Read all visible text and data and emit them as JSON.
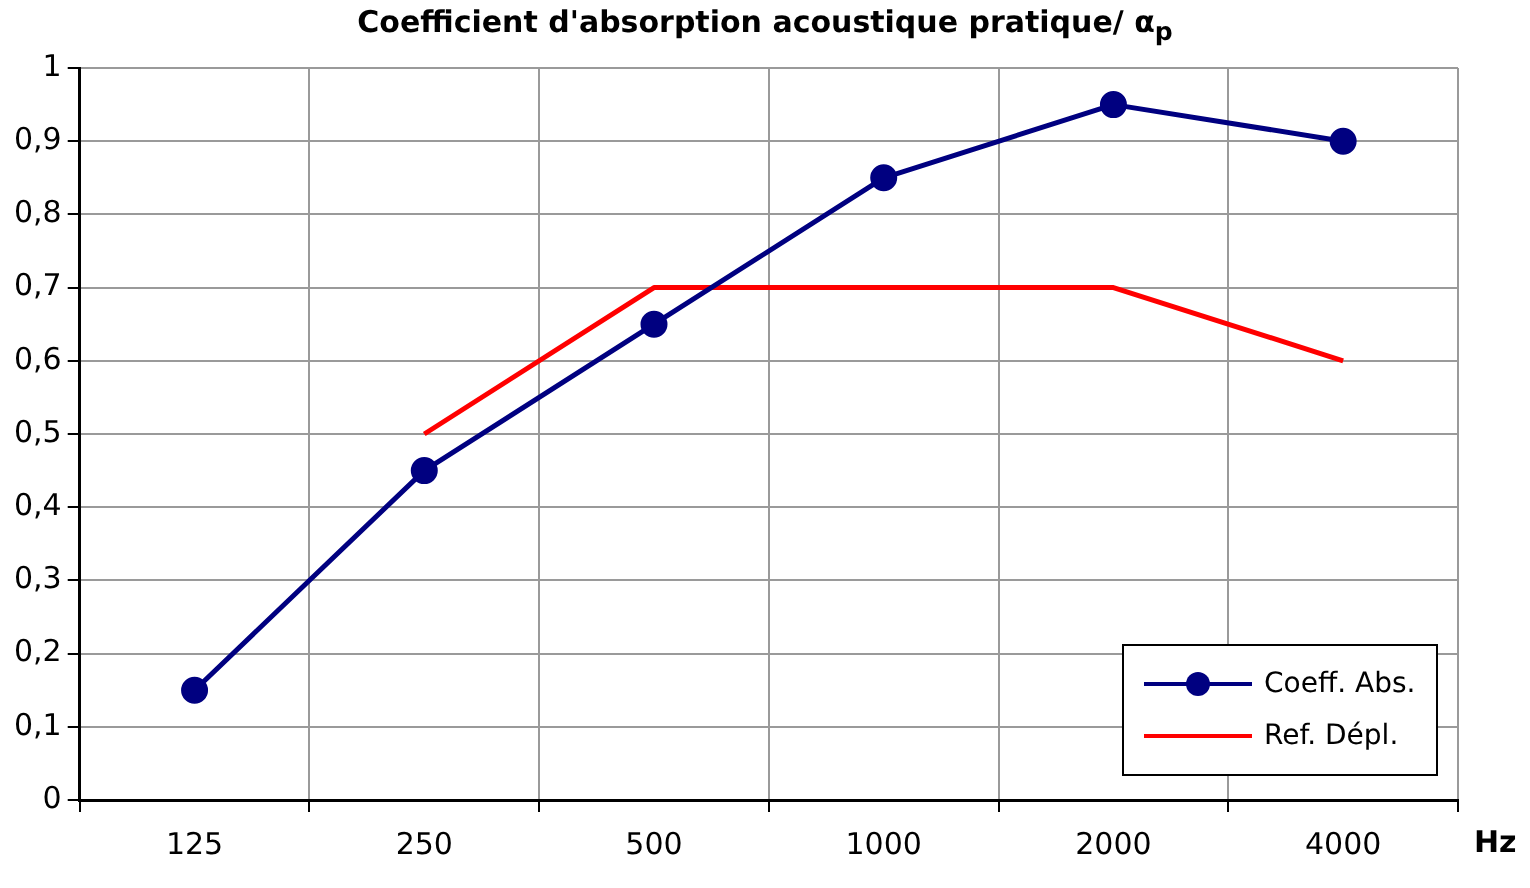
{
  "chart_data": {
    "type": "line",
    "title": "Coefficient d'absorption acoustique pratique/ α$_{p}$",
    "xlabel": "Hz",
    "categories": [
      "125",
      "250",
      "500",
      "1000",
      "2000",
      "4000"
    ],
    "series": [
      {
        "name": "Coeff. Abs.",
        "color": "#000080",
        "values": [
          0.15,
          0.45,
          0.65,
          0.85,
          0.95,
          0.9
        ],
        "marker": "circle"
      },
      {
        "name": "Ref. Dépl.",
        "color": "#ff0000",
        "values": [
          null,
          0.5,
          0.7,
          0.7,
          0.7,
          0.6
        ],
        "marker": "none"
      }
    ],
    "ylim": [
      0,
      1
    ],
    "yticks": [
      0,
      {
        "value": 0.1,
        "label": "0,1"
      },
      {
        "value": 0.2,
        "label": "0,2"
      },
      {
        "value": 0.3,
        "label": "0,3"
      },
      {
        "value": 0.4,
        "label": "0,4"
      },
      {
        "value": 0.5,
        "label": "0,5"
      },
      {
        "value": 0.6,
        "label": "0,6"
      },
      {
        "value": 0.7,
        "label": "0,7"
      },
      {
        "value": 0.8,
        "label": "0,8"
      },
      {
        "value": 0.9,
        "label": "0,9"
      },
      1
    ],
    "grid": true,
    "legend": "bottom right",
    "line_style": "solid"
  }
}
